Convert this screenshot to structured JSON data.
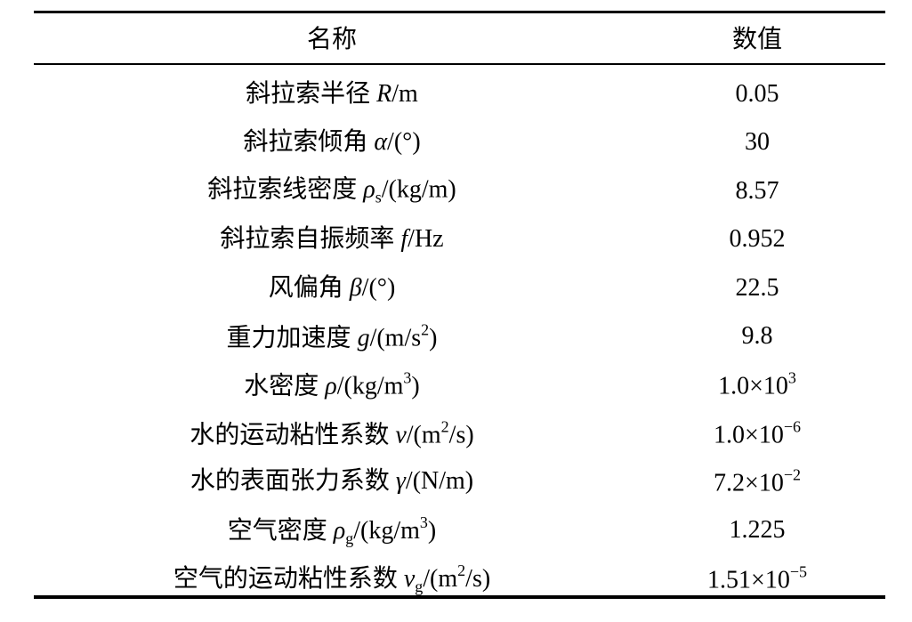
{
  "table": {
    "header": [
      "名称",
      "数值"
    ],
    "rows": [
      [
        [
          "斜拉索半径 ",
          {
            "text": "R",
            "style": "italic"
          },
          "/m"
        ],
        [
          "0.05"
        ]
      ],
      [
        [
          "斜拉索倾角 ",
          {
            "text": "α",
            "style": "italic"
          },
          "/(°)"
        ],
        [
          "30"
        ]
      ],
      [
        [
          "斜拉索线密度 ",
          {
            "text": "ρ",
            "style": "italic"
          },
          {
            "text": "s",
            "style": "subscript"
          },
          "/(kg/m)"
        ],
        [
          "8.57"
        ]
      ],
      [
        [
          "斜拉索自振频率 ",
          {
            "text": "f",
            "style": "italic"
          },
          "/Hz"
        ],
        [
          "0.952"
        ]
      ],
      [
        [
          "风偏角 ",
          {
            "text": "β",
            "style": "italic"
          },
          "/(°)"
        ],
        [
          "22.5"
        ]
      ],
      [
        [
          "重力加速度 ",
          {
            "text": "g",
            "style": "italic"
          },
          "/(m/s",
          {
            "text": "2",
            "style": "superscript"
          },
          ")"
        ],
        [
          "9.8"
        ]
      ],
      [
        [
          "水密度 ",
          {
            "text": "ρ",
            "style": "italic"
          },
          "/(kg/m",
          {
            "text": "3",
            "style": "superscript"
          },
          ")"
        ],
        [
          "1.0×10",
          {
            "text": "3",
            "style": "superscript"
          }
        ]
      ],
      [
        [
          "水的运动粘性系数 ",
          {
            "text": "ν",
            "style": "italic"
          },
          "/(m",
          {
            "text": "2",
            "style": "superscript"
          },
          "/s)"
        ],
        [
          "1.0×10",
          {
            "text": "−6",
            "style": "superscript"
          }
        ]
      ],
      [
        [
          "水的表面张力系数 ",
          {
            "text": "γ",
            "style": "italic"
          },
          "/(N/m)"
        ],
        [
          "7.2×10",
          {
            "text": "−2",
            "style": "superscript"
          }
        ]
      ],
      [
        [
          "空气密度 ",
          {
            "text": "ρ",
            "style": "italic"
          },
          {
            "text": "g",
            "style": "subscript"
          },
          "/(kg/m",
          {
            "text": "3",
            "style": "superscript"
          },
          ")"
        ],
        [
          "1.225"
        ]
      ],
      [
        [
          "空气的运动粘性系数 ",
          {
            "text": "ν",
            "style": "italic"
          },
          {
            "text": "g",
            "style": "subscript"
          },
          "/(m",
          {
            "text": "2",
            "style": "superscript"
          },
          "/s)"
        ],
        [
          "1.51×10",
          {
            "text": "−5",
            "style": "superscript"
          }
        ]
      ]
    ]
  }
}
